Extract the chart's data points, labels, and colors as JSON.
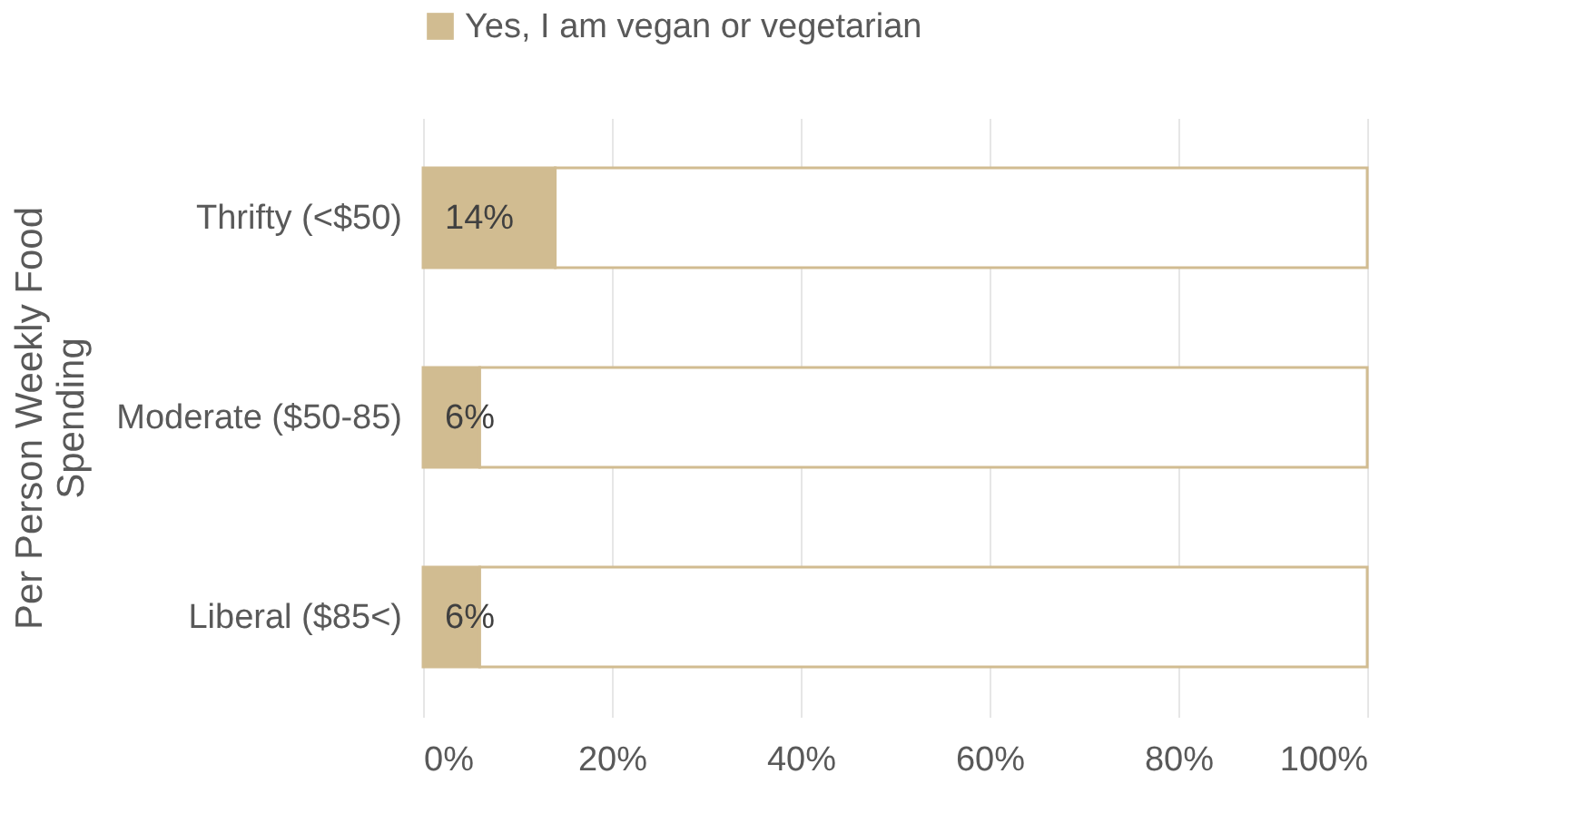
{
  "chart_data": {
    "type": "bar",
    "orientation": "horizontal",
    "stacked": true,
    "categories": [
      "Thrifty (<$50)",
      "Moderate ($50-85)",
      "Liberal ($85<)"
    ],
    "ylabel": "Per Person Weekly Food Spending",
    "series": [
      {
        "name": "Yes, I am vegan or vegetarian",
        "color": "#d1bc91",
        "values": [
          14,
          6,
          6
        ],
        "value_labels": [
          "14%",
          "6%",
          "6%"
        ]
      },
      {
        "color": "#ffffff",
        "values": [
          86,
          94,
          94
        ]
      }
    ],
    "xlim": [
      0,
      100
    ],
    "xticks": [
      {
        "value": 0,
        "label": "0%"
      },
      {
        "value": 20,
        "label": "20%"
      },
      {
        "value": 40,
        "label": "40%"
      },
      {
        "value": 60,
        "label": "60%"
      },
      {
        "value": 80,
        "label": "80%"
      },
      {
        "value": 100,
        "label": "100%"
      }
    ],
    "grid": "x",
    "legend": "top"
  }
}
